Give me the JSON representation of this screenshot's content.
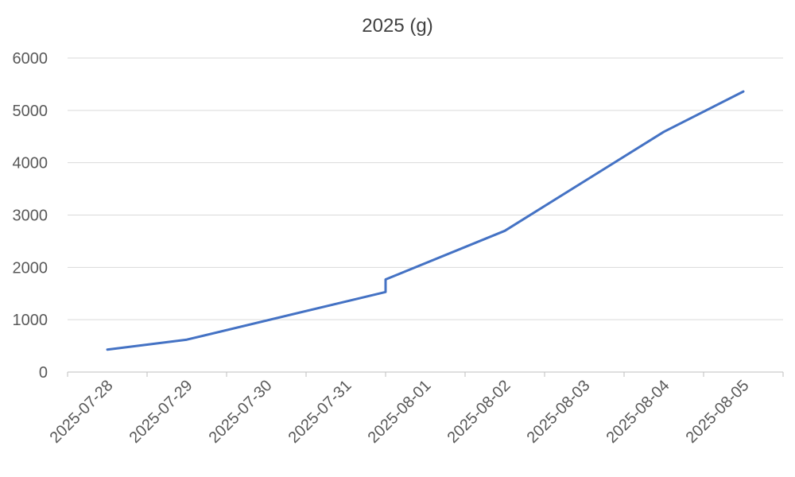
{
  "chart_data": {
    "type": "line",
    "title": "2025 (g)",
    "xlabel": "",
    "ylabel": "",
    "ylim": [
      0,
      6000
    ],
    "yticks": [
      0,
      1000,
      2000,
      3000,
      4000,
      5000,
      6000
    ],
    "categories": [
      "2025-07-28",
      "2025-07-29",
      "2025-07-30",
      "2025-07-31",
      "2025-08-01",
      "2025-08-02",
      "2025-08-03",
      "2025-08-04",
      "2025-08-05"
    ],
    "grid": true,
    "legend": "none",
    "series": [
      {
        "color": "#4472c4",
        "points": [
          {
            "x": "2025-07-28",
            "y": 430
          },
          {
            "x": "2025-07-29",
            "y": 620
          },
          {
            "x": "2025-07-31",
            "y": 1530
          },
          {
            "x": "2025-07-31",
            "y": 1770
          },
          {
            "x": "2025-08-02",
            "y": 2700
          },
          {
            "x": "2025-08-04",
            "y": 4590
          },
          {
            "x": "2025-08-05",
            "y": 5360
          }
        ]
      }
    ]
  }
}
